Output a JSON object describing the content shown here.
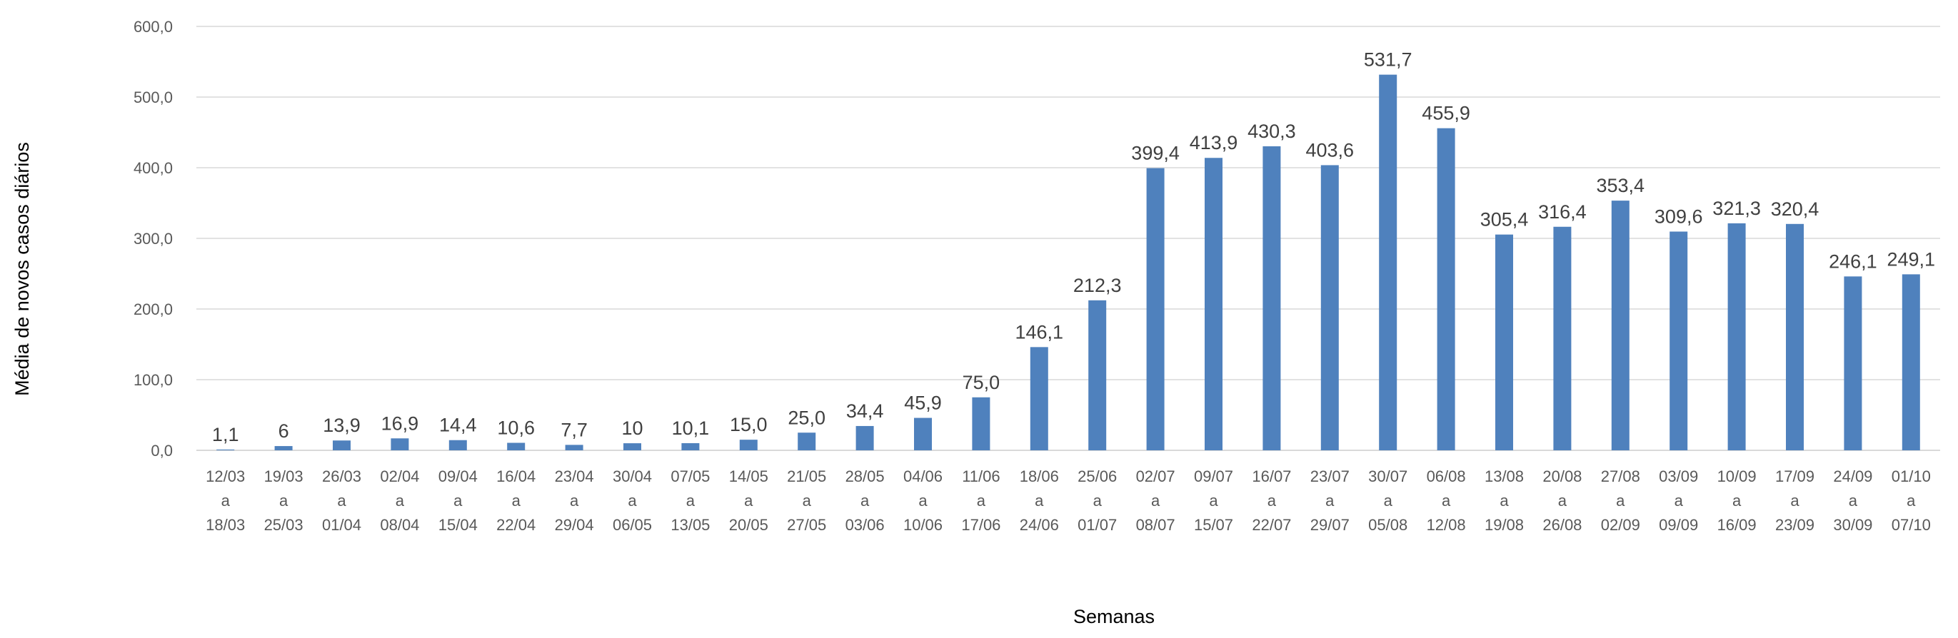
{
  "chart_data": {
    "type": "bar",
    "title": "",
    "xlabel": "Semanas",
    "ylabel": "Média de novos casos diários",
    "ylim": [
      0,
      600
    ],
    "yticks": [
      "0,0",
      "100,0",
      "200,0",
      "300,0",
      "400,0",
      "500,0",
      "600,0"
    ],
    "grid": true,
    "legend": "none",
    "bar_color": "#4f81bd",
    "categories": [
      [
        "12/03",
        "a",
        "18/03"
      ],
      [
        "19/03",
        "a",
        "25/03"
      ],
      [
        "26/03",
        "a",
        "01/04"
      ],
      [
        "02/04",
        "a",
        "08/04"
      ],
      [
        "09/04",
        "a",
        "15/04"
      ],
      [
        "16/04",
        "a",
        "22/04"
      ],
      [
        "23/04",
        "a",
        "29/04"
      ],
      [
        "30/04",
        "a",
        "06/05"
      ],
      [
        "07/05",
        "a",
        "13/05"
      ],
      [
        "14/05",
        "a",
        "20/05"
      ],
      [
        "21/05",
        "a",
        "27/05"
      ],
      [
        "28/05",
        "a",
        "03/06"
      ],
      [
        "04/06",
        "a",
        "10/06"
      ],
      [
        "11/06",
        "a",
        "17/06"
      ],
      [
        "18/06",
        "a",
        "24/06"
      ],
      [
        "25/06",
        "a",
        "01/07"
      ],
      [
        "02/07",
        "a",
        "08/07"
      ],
      [
        "09/07",
        "a",
        "15/07"
      ],
      [
        "16/07",
        "a",
        "22/07"
      ],
      [
        "23/07",
        "a",
        "29/07"
      ],
      [
        "30/07",
        "a",
        "05/08"
      ],
      [
        "06/08",
        "a",
        "12/08"
      ],
      [
        "13/08",
        "a",
        "19/08"
      ],
      [
        "20/08",
        "a",
        "26/08"
      ],
      [
        "27/08",
        "a",
        "02/09"
      ],
      [
        "03/09",
        "a",
        "09/09"
      ],
      [
        "10/09",
        "a",
        "16/09"
      ],
      [
        "17/09",
        "a",
        "23/09"
      ],
      [
        "24/09",
        "a",
        "30/09"
      ],
      [
        "01/10",
        "a",
        "07/10"
      ]
    ],
    "values": [
      1.1,
      6,
      13.9,
      16.9,
      14.4,
      10.6,
      7.7,
      10,
      10.1,
      15.0,
      25.0,
      34.4,
      45.9,
      75.0,
      146.1,
      212.3,
      399.4,
      413.9,
      430.3,
      403.6,
      531.7,
      455.9,
      305.4,
      316.4,
      353.4,
      309.6,
      321.3,
      320.4,
      246.1,
      249.1
    ],
    "value_labels": [
      "1,1",
      "6",
      "13,9",
      "16,9",
      "14,4",
      "10,6",
      "7,7",
      "10",
      "10,1",
      "15,0",
      "25,0",
      "34,4",
      "45,9",
      "75,0",
      "146,1",
      "212,3",
      "399,4",
      "413,9",
      "430,3",
      "403,6",
      "531,7",
      "455,9",
      "305,4",
      "316,4",
      "353,4",
      "309,6",
      "321,3",
      "320,4",
      "246,1",
      "249,1"
    ]
  }
}
